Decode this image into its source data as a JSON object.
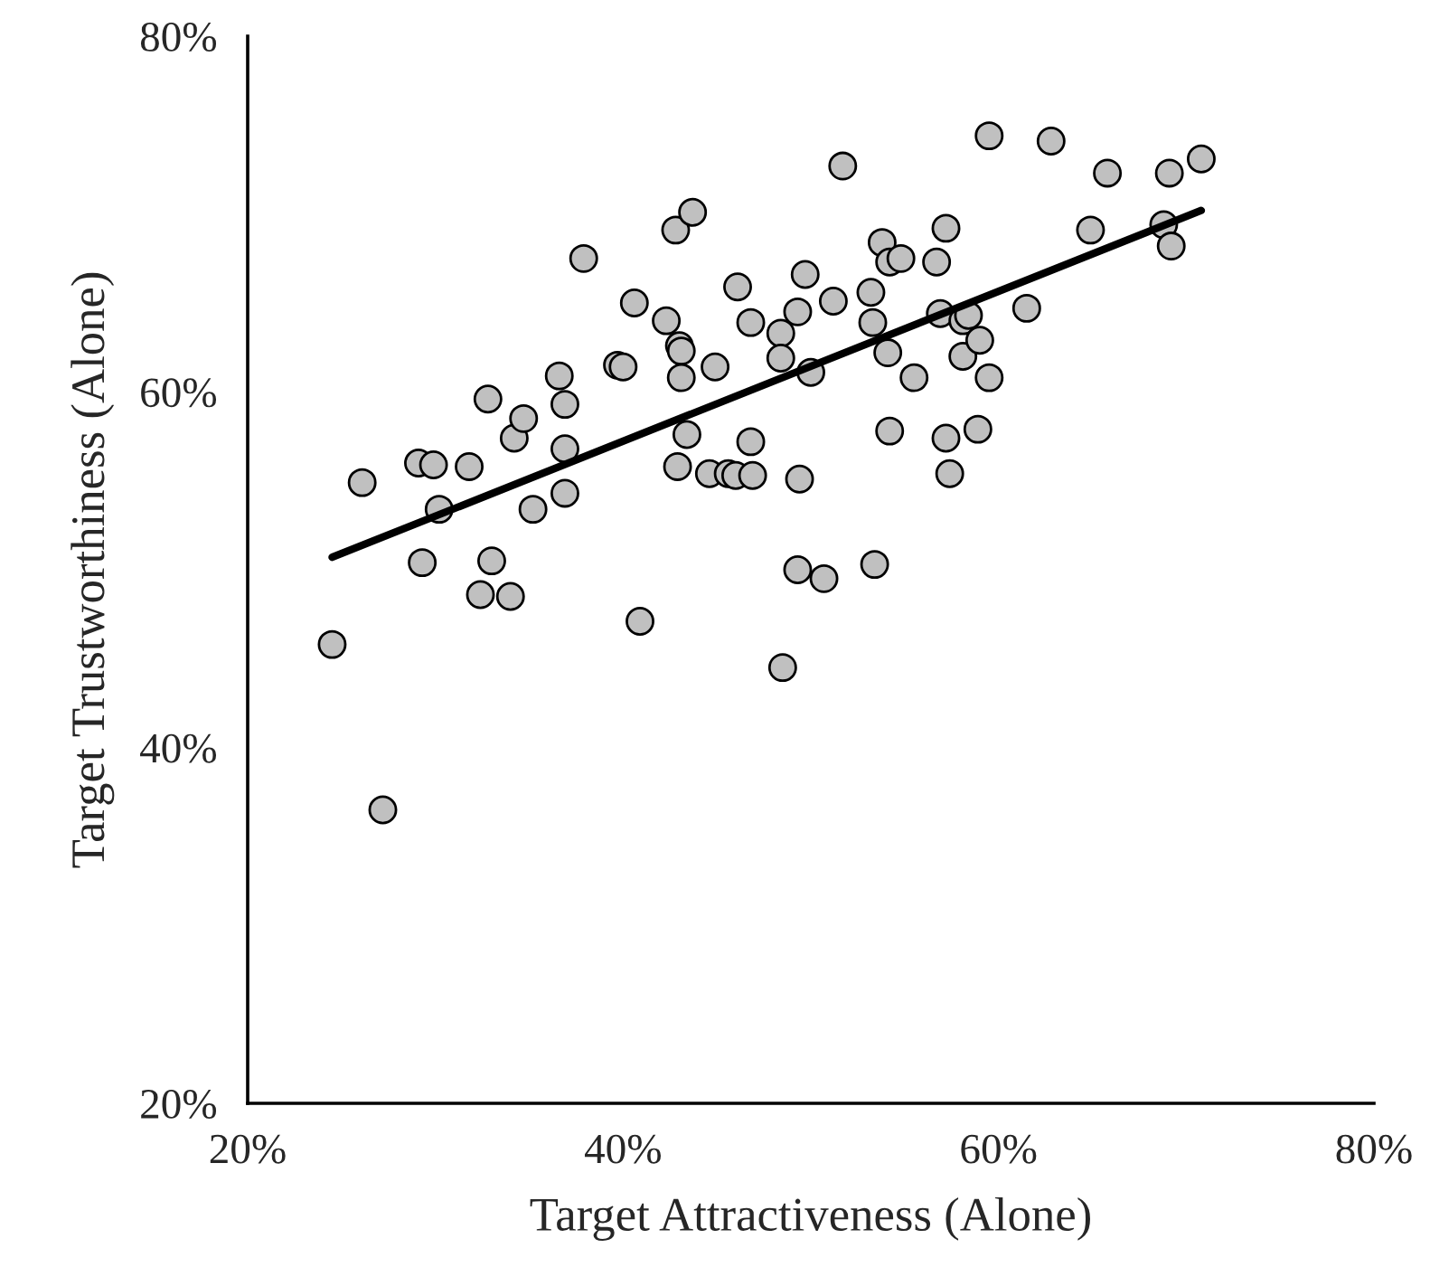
{
  "chart_data": {
    "type": "scatter",
    "xlabel": "Target Attractiveness (Alone)",
    "ylabel": "Target Trustworthiness (Alone)",
    "xlim": [
      20,
      80
    ],
    "ylim": [
      20,
      80
    ],
    "xticks": [
      {
        "value": 20,
        "label": "20%"
      },
      {
        "value": 40,
        "label": "40%"
      },
      {
        "value": 60,
        "label": "60%"
      },
      {
        "value": 80,
        "label": "80%"
      }
    ],
    "yticks": [
      {
        "value": 20,
        "label": "20%"
      },
      {
        "value": 40,
        "label": "40%"
      },
      {
        "value": 60,
        "label": "60%"
      },
      {
        "value": 80,
        "label": "80%"
      }
    ],
    "grid": false,
    "legend": false,
    "marker": "circle",
    "series": [
      {
        "color": "#c0c0c0",
        "x": [
          24.5,
          26.1,
          27.2,
          29.1,
          29.3,
          29.9,
          30.2,
          31.8,
          32.4,
          32.8,
          33.0,
          34.0,
          34.2,
          34.7,
          35.2,
          36.6,
          36.9,
          36.9,
          36.9,
          37.9,
          39.7,
          40.0,
          40.6,
          40.9,
          42.3,
          42.8,
          43.0,
          43.1,
          43.1,
          42.9,
          43.4,
          43.7,
          44.6,
          44.9,
          45.6,
          46.0,
          46.1,
          46.8,
          46.8,
          46.9,
          48.4,
          48.4,
          48.5,
          49.3,
          49.3,
          49.4,
          49.7,
          50.0,
          50.7,
          51.2,
          51.7,
          53.2,
          53.3,
          53.4,
          53.8,
          54.1,
          54.2,
          54.8,
          54.2,
          55.5,
          56.7,
          56.9,
          58.1,
          58.4,
          57.2,
          57.2,
          57.4,
          58.1,
          59.0,
          59.5,
          58.9,
          59.5,
          61.5,
          62.8,
          64.9,
          65.8,
          68.8,
          69.1,
          69.2,
          70.8
        ],
        "values": [
          45.8,
          54.9,
          36.5,
          56.0,
          50.4,
          55.9,
          53.4,
          55.8,
          48.6,
          59.6,
          50.5,
          48.5,
          57.4,
          58.5,
          53.4,
          60.9,
          59.3,
          56.8,
          54.3,
          67.5,
          61.5,
          61.4,
          65.0,
          47.1,
          64.0,
          69.1,
          62.6,
          62.3,
          60.8,
          55.8,
          57.6,
          70.1,
          55.4,
          61.4,
          55.4,
          55.3,
          65.9,
          63.9,
          57.2,
          55.3,
          63.3,
          61.9,
          44.5,
          50.0,
          64.5,
          55.1,
          66.6,
          61.1,
          49.5,
          65.1,
          72.7,
          65.6,
          63.9,
          50.3,
          68.4,
          62.2,
          67.3,
          67.5,
          57.8,
          60.8,
          67.3,
          64.4,
          64.0,
          64.3,
          69.2,
          57.4,
          55.4,
          62.0,
          62.9,
          60.8,
          57.9,
          74.4,
          64.7,
          74.1,
          69.1,
          72.3,
          69.4,
          72.3,
          68.2,
          73.1
        ]
      },
      {
        "type": "line",
        "color": "#000000",
        "marker": "none",
        "line_style": "solid",
        "x": [
          24.5,
          70.8
        ],
        "values": [
          50.7,
          70.2
        ]
      }
    ]
  }
}
